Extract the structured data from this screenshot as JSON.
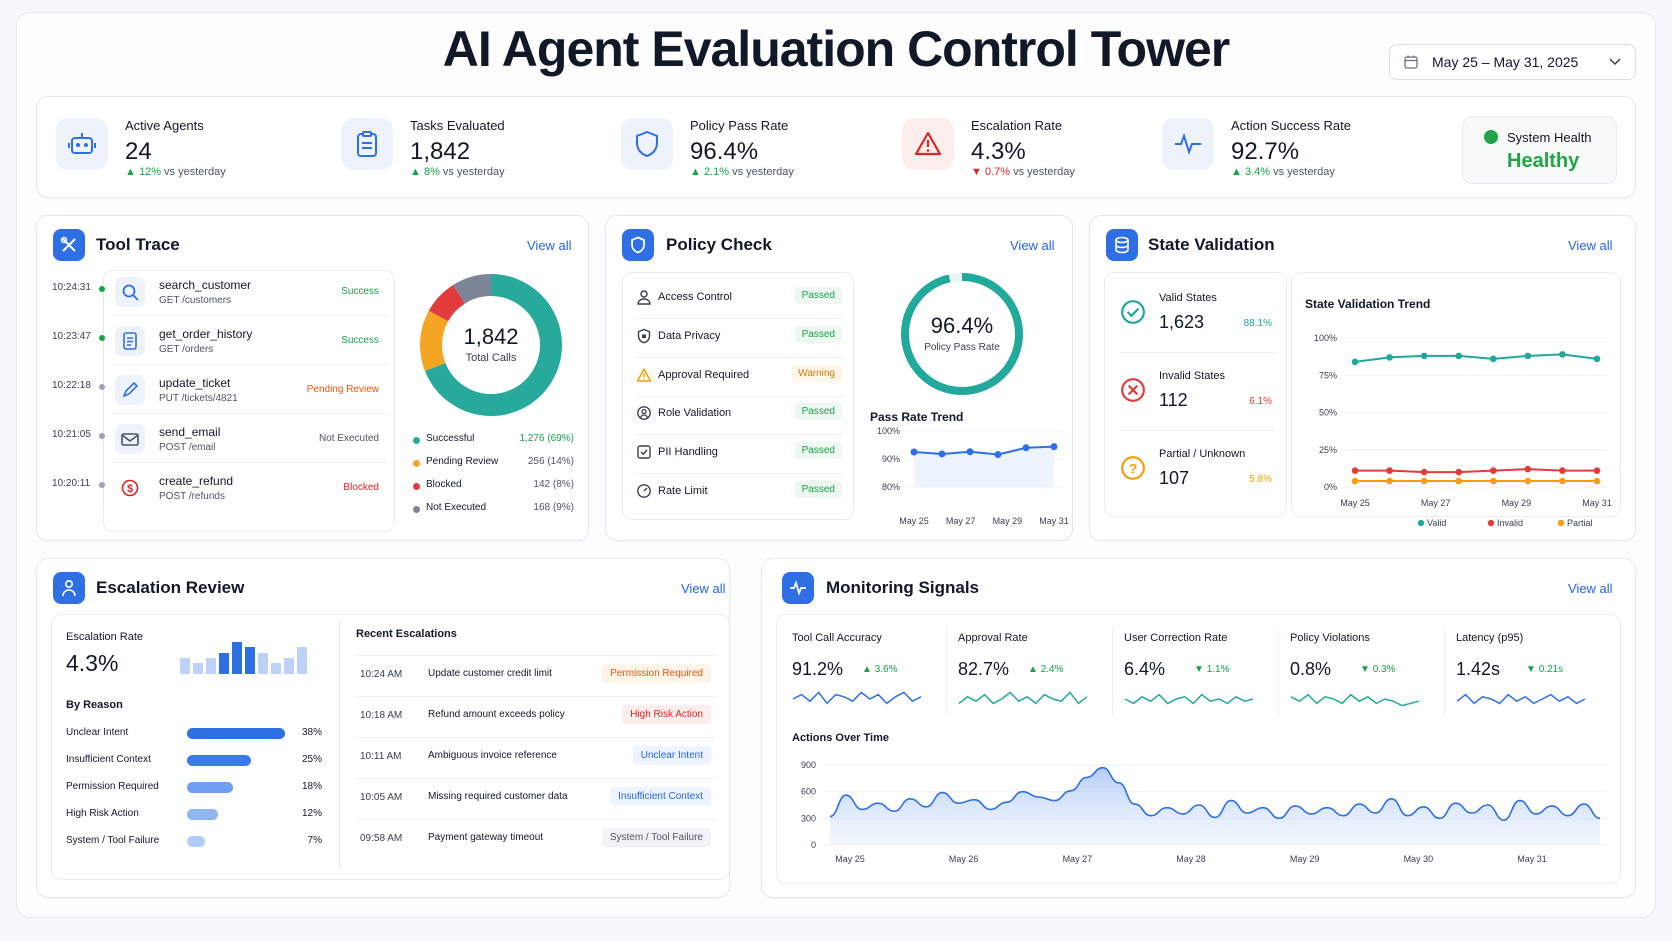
{
  "title": "AI Agent Evaluation Control Tower",
  "date_range": "May 25 – May 31, 2025",
  "kpis": [
    {
      "label": "Active Agents",
      "value": "24",
      "delta": "12%",
      "delta_text": "vs yesterday",
      "dir": "up",
      "icon": "robot-icon"
    },
    {
      "label": "Tasks Evaluated",
      "value": "1,842",
      "delta": "8%",
      "delta_text": "vs yesterday",
      "dir": "up",
      "icon": "clipboard-icon"
    },
    {
      "label": "Policy Pass Rate",
      "value": "96.4%",
      "delta": "2.1%",
      "delta_text": "vs yesterday",
      "dir": "up",
      "icon": "shield-icon"
    },
    {
      "label": "Escalation Rate",
      "value": "4.3%",
      "delta": "0.7%",
      "delta_text": "vs yesterday",
      "dir": "down",
      "icon": "warning-icon"
    },
    {
      "label": "Action Success Rate",
      "value": "92.7%",
      "delta": "3.4%",
      "delta_text": "vs yesterday",
      "dir": "up",
      "icon": "pulse-icon"
    }
  ],
  "system_health": {
    "label": "System Health",
    "value": "Healthy"
  },
  "tool_trace": {
    "title": "Tool Trace",
    "view_all": "View all",
    "calls": [
      {
        "time": "10:24:31",
        "name": "search_customer",
        "endpoint": "GET /customers",
        "status": "Success",
        "icon": "search-icon"
      },
      {
        "time": "10:23:47",
        "name": "get_order_history",
        "endpoint": "GET /orders",
        "status": "Success",
        "icon": "document-icon"
      },
      {
        "time": "10:22:18",
        "name": "update_ticket",
        "endpoint": "PUT /tickets/4821",
        "status": "Pending Review",
        "icon": "pencil-icon"
      },
      {
        "time": "10:21:05",
        "name": "send_email",
        "endpoint": "POST /email",
        "status": "Not Executed",
        "icon": "mail-icon"
      },
      {
        "time": "10:20:11",
        "name": "create_refund",
        "endpoint": "POST /refunds",
        "status": "Blocked",
        "icon": "dollar-icon"
      }
    ],
    "donut": {
      "total": "1,842",
      "total_label": "Total Calls"
    },
    "legend": [
      {
        "label": "Successful",
        "value": "1,276",
        "pct": "(69%)",
        "color": "#27a99b",
        "share": 69
      },
      {
        "label": "Pending Review",
        "value": "256",
        "pct": "(14%)",
        "color": "#f5a524",
        "share": 14
      },
      {
        "label": "Blocked",
        "value": "142",
        "pct": "(8%)",
        "color": "#e23b3b",
        "share": 8
      },
      {
        "label": "Not Executed",
        "value": "168",
        "pct": "(9%)",
        "color": "#7b8597",
        "share": 9
      }
    ]
  },
  "policy_check": {
    "title": "Policy Check",
    "view_all": "View all",
    "items": [
      {
        "label": "Access Control",
        "status": "Passed",
        "icon": "user-lock-icon"
      },
      {
        "label": "Data Privacy",
        "status": "Passed",
        "icon": "privacy-shield-icon"
      },
      {
        "label": "Approval Required",
        "status": "Warning",
        "icon": "warning-icon"
      },
      {
        "label": "Role Validation",
        "status": "Passed",
        "icon": "role-icon"
      },
      {
        "label": "PII Handling",
        "status": "Passed",
        "icon": "check-square-icon"
      },
      {
        "label": "Rate Limit",
        "status": "Passed",
        "icon": "gauge-icon"
      }
    ],
    "gauge": {
      "value": "96.4%",
      "label": "Policy Pass Rate",
      "fraction": 0.964
    },
    "trend": {
      "title": "Pass Rate Trend",
      "y_ticks": [
        "100%",
        "90%",
        "80%"
      ],
      "x_ticks": [
        "May 25",
        "May 27",
        "May 29",
        "May 31"
      ],
      "values": [
        92.5,
        91.8,
        92.6,
        91.6,
        94.0,
        94.4
      ],
      "ylim": [
        80,
        100
      ]
    }
  },
  "state_validation": {
    "title": "State Validation",
    "view_all": "View all",
    "stats": [
      {
        "label": "Valid States",
        "value": "1,623",
        "pct": "88.1%",
        "color": "#1fa59a",
        "icon": "check-circle-icon"
      },
      {
        "label": "Invalid States",
        "value": "112",
        "pct": "6.1%",
        "color": "#e23b3b",
        "icon": "x-circle-icon"
      },
      {
        "label": "Partial / Unknown",
        "value": "107",
        "pct": "5.8%",
        "color": "#f59e0b",
        "icon": "question-circle-icon"
      }
    ],
    "chart": {
      "title": "State Validation Trend",
      "y_ticks": [
        "100%",
        "75%",
        "50%",
        "25%",
        "0%"
      ],
      "x_ticks": [
        "May 25",
        "May 27",
        "May 29",
        "May 31"
      ],
      "series": [
        {
          "name": "Valid",
          "color": "#21a79b",
          "values": [
            84,
            87,
            88,
            88,
            86,
            88,
            89,
            86
          ]
        },
        {
          "name": "Invalid",
          "color": "#e23b3b",
          "values": [
            11,
            11,
            10,
            10,
            11,
            12,
            11,
            11
          ]
        },
        {
          "name": "Partial",
          "color": "#f59e0b",
          "values": [
            4,
            4,
            4,
            4,
            4,
            4,
            4,
            4
          ]
        }
      ],
      "ylim": [
        0,
        100
      ]
    }
  },
  "escalation": {
    "title": "Escalation Review",
    "view_all": "View all",
    "rate_label": "Escalation Rate",
    "rate": "4.3%",
    "bars": [
      3,
      2,
      3,
      4,
      6,
      5,
      4,
      2,
      3,
      5
    ],
    "by_reason_title": "By Reason",
    "reasons": [
      {
        "label": "Unclear Intent",
        "pct": "38%",
        "share": 38
      },
      {
        "label": "Insufficient Context",
        "pct": "25%",
        "share": 25
      },
      {
        "label": "Permission Required",
        "pct": "18%",
        "share": 18
      },
      {
        "label": "High Risk Action",
        "pct": "12%",
        "share": 12
      },
      {
        "label": "System / Tool Failure",
        "pct": "7%",
        "share": 7
      }
    ],
    "recent_title": "Recent Escalations",
    "recent": [
      {
        "time": "10:24 AM",
        "text": "Update customer credit limit",
        "tag": "Permission Required",
        "tag_color": "#ea580c",
        "tag_bg": "#fff4ea"
      },
      {
        "time": "10:18 AM",
        "text": "Refund amount exceeds policy",
        "tag": "High Risk Action",
        "tag_color": "#dc2626",
        "tag_bg": "#fdeeee"
      },
      {
        "time": "10:11 AM",
        "text": "Ambiguous invoice reference",
        "tag": "Unclear Intent",
        "tag_color": "#2563eb",
        "tag_bg": "#eef4ff"
      },
      {
        "time": "10:05 AM",
        "text": "Missing required customer data",
        "tag": "Insufficient Context",
        "tag_color": "#2563eb",
        "tag_bg": "#eef4ff"
      },
      {
        "time": "09:58 AM",
        "text": "Payment gateway timeout",
        "tag": "System / Tool Failure",
        "tag_color": "#4b5563",
        "tag_bg": "#f1f3f6"
      }
    ]
  },
  "monitoring": {
    "title": "Monitoring Signals",
    "view_all": "View all",
    "signals": [
      {
        "label": "Tool Call Accuracy",
        "value": "91.2%",
        "delta": "3.6%",
        "dir": "up"
      },
      {
        "label": "Approval Rate",
        "value": "82.7%",
        "delta": "2.4%",
        "dir": "up"
      },
      {
        "label": "User Correction Rate",
        "value": "6.4%",
        "delta": "1.1%",
        "dir": "down"
      },
      {
        "label": "Policy Violations",
        "value": "0.8%",
        "delta": "0.3%",
        "dir": "down"
      },
      {
        "label": "Latency (p95)",
        "value": "1.42s",
        "delta": "0.21s",
        "dir": "down"
      }
    ],
    "actions": {
      "title": "Actions Over Time",
      "y_ticks": [
        "900",
        "600",
        "300",
        "0"
      ],
      "x_ticks": [
        "May 25",
        "May 26",
        "May 27",
        "May 28",
        "May 29",
        "May 30",
        "May 31"
      ],
      "ylim": [
        0,
        900
      ],
      "values": [
        320,
        560,
        400,
        470,
        380,
        520,
        430,
        590,
        470,
        510,
        400,
        480,
        600,
        540,
        500,
        610,
        760,
        870,
        700,
        460,
        330,
        420,
        350,
        450,
        310,
        500,
        360,
        420,
        300,
        440,
        350,
        420,
        330,
        460,
        360,
        520,
        330,
        430,
        300,
        470,
        360,
        450,
        280,
        500,
        350,
        440,
        330,
        460,
        300
      ]
    }
  }
}
